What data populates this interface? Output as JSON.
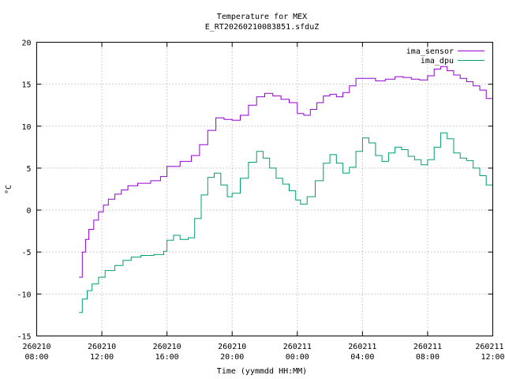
{
  "chart_data": {
    "type": "line",
    "title": "Temperature for MEX",
    "subtitle": "E_RT20260210083851.sfduZ",
    "xlabel": "Time (yymmdd HH:MM)",
    "ylabel": "°C",
    "ylim": [
      -15,
      20
    ],
    "xlim_hours": [
      0,
      28
    ],
    "yticks": [
      -15,
      -10,
      -5,
      0,
      5,
      10,
      15,
      20
    ],
    "xticks": [
      {
        "hour": 0,
        "date": "260210",
        "time": "08:00"
      },
      {
        "hour": 4,
        "date": "260210",
        "time": "12:00"
      },
      {
        "hour": 8,
        "date": "260210",
        "time": "16:00"
      },
      {
        "hour": 12,
        "date": "260210",
        "time": "20:00"
      },
      {
        "hour": 16,
        "date": "260211",
        "time": "00:00"
      },
      {
        "hour": 20,
        "date": "260211",
        "time": "04:00"
      },
      {
        "hour": 24,
        "date": "260211",
        "time": "08:00"
      },
      {
        "hour": 28,
        "date": "260211",
        "time": "12:00"
      }
    ],
    "grid": true,
    "legend_position": "top-right",
    "series": [
      {
        "name": "ima_sensor",
        "color": "#9400d3",
        "points": [
          [
            2.6,
            -8.0
          ],
          [
            2.8,
            -5.0
          ],
          [
            3.0,
            -3.5
          ],
          [
            3.2,
            -2.3
          ],
          [
            3.5,
            -1.2
          ],
          [
            3.8,
            -0.2
          ],
          [
            4.1,
            0.6
          ],
          [
            4.4,
            1.3
          ],
          [
            4.8,
            1.9
          ],
          [
            5.2,
            2.4
          ],
          [
            5.6,
            2.9
          ],
          [
            6.2,
            3.2
          ],
          [
            7.0,
            3.5
          ],
          [
            7.6,
            4.0
          ],
          [
            8.0,
            5.2
          ],
          [
            8.8,
            5.8
          ],
          [
            9.5,
            6.5
          ],
          [
            10.0,
            7.8
          ],
          [
            10.5,
            9.5
          ],
          [
            11.0,
            11.0
          ],
          [
            11.5,
            10.8
          ],
          [
            12.0,
            10.7
          ],
          [
            12.5,
            11.3
          ],
          [
            13.0,
            12.5
          ],
          [
            13.5,
            13.5
          ],
          [
            14.0,
            13.9
          ],
          [
            14.5,
            13.6
          ],
          [
            15.0,
            13.2
          ],
          [
            15.5,
            12.8
          ],
          [
            16.0,
            11.5
          ],
          [
            16.4,
            11.3
          ],
          [
            16.8,
            12.0
          ],
          [
            17.2,
            12.8
          ],
          [
            17.6,
            13.6
          ],
          [
            18.0,
            13.8
          ],
          [
            18.4,
            13.5
          ],
          [
            18.8,
            14.0
          ],
          [
            19.2,
            14.8
          ],
          [
            19.6,
            15.7
          ],
          [
            20.2,
            15.7
          ],
          [
            20.8,
            15.4
          ],
          [
            21.4,
            15.6
          ],
          [
            22.0,
            15.9
          ],
          [
            22.5,
            15.8
          ],
          [
            23.0,
            15.6
          ],
          [
            23.5,
            15.5
          ],
          [
            24.0,
            16.0
          ],
          [
            24.4,
            16.8
          ],
          [
            24.8,
            17.1
          ],
          [
            25.2,
            16.6
          ],
          [
            25.6,
            16.1
          ],
          [
            26.0,
            15.7
          ],
          [
            26.4,
            15.3
          ],
          [
            26.8,
            14.8
          ],
          [
            27.2,
            14.3
          ],
          [
            27.6,
            13.3
          ],
          [
            28.0,
            12.5
          ]
        ]
      },
      {
        "name": "ima_dpu",
        "color": "#009e73",
        "points": [
          [
            2.6,
            -12.2
          ],
          [
            2.8,
            -10.6
          ],
          [
            3.1,
            -9.6
          ],
          [
            3.4,
            -8.8
          ],
          [
            3.8,
            -8.0
          ],
          [
            4.2,
            -7.2
          ],
          [
            4.8,
            -6.6
          ],
          [
            5.3,
            -6.0
          ],
          [
            5.8,
            -5.6
          ],
          [
            6.4,
            -5.4
          ],
          [
            7.2,
            -5.3
          ],
          [
            7.8,
            -4.9
          ],
          [
            8.0,
            -3.6
          ],
          [
            8.4,
            -3.0
          ],
          [
            8.8,
            -3.5
          ],
          [
            9.3,
            -3.3
          ],
          [
            9.7,
            -1.0
          ],
          [
            10.1,
            1.8
          ],
          [
            10.5,
            3.9
          ],
          [
            10.9,
            4.4
          ],
          [
            11.3,
            3.0
          ],
          [
            11.7,
            1.6
          ],
          [
            12.0,
            2.0
          ],
          [
            12.5,
            3.8
          ],
          [
            13.0,
            5.7
          ],
          [
            13.5,
            7.0
          ],
          [
            13.9,
            6.2
          ],
          [
            14.3,
            5.0
          ],
          [
            14.7,
            3.8
          ],
          [
            15.1,
            3.1
          ],
          [
            15.5,
            2.3
          ],
          [
            15.9,
            1.2
          ],
          [
            16.2,
            0.7
          ],
          [
            16.6,
            1.6
          ],
          [
            17.1,
            3.5
          ],
          [
            17.6,
            5.6
          ],
          [
            18.0,
            6.6
          ],
          [
            18.4,
            5.6
          ],
          [
            18.8,
            4.4
          ],
          [
            19.2,
            5.1
          ],
          [
            19.6,
            7.0
          ],
          [
            20.0,
            8.6
          ],
          [
            20.4,
            8.0
          ],
          [
            20.8,
            6.5
          ],
          [
            21.2,
            5.8
          ],
          [
            21.6,
            6.8
          ],
          [
            22.0,
            7.5
          ],
          [
            22.4,
            7.2
          ],
          [
            22.8,
            6.4
          ],
          [
            23.2,
            6.0
          ],
          [
            23.6,
            5.4
          ],
          [
            24.0,
            6.0
          ],
          [
            24.4,
            7.5
          ],
          [
            24.8,
            9.2
          ],
          [
            25.2,
            8.5
          ],
          [
            25.6,
            6.8
          ],
          [
            26.0,
            6.2
          ],
          [
            26.4,
            5.9
          ],
          [
            26.8,
            5.0
          ],
          [
            27.2,
            4.1
          ],
          [
            27.6,
            3.0
          ],
          [
            28.0,
            2.0
          ]
        ]
      }
    ]
  }
}
